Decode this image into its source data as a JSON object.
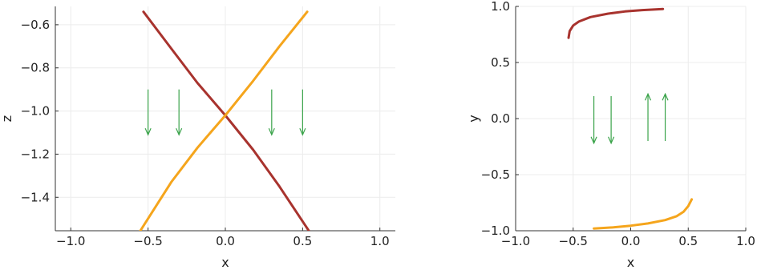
{
  "chart_data": [
    {
      "type": "line",
      "xlabel": "x",
      "ylabel": "z",
      "xlim": [
        -1.1,
        1.1
      ],
      "ylim": [
        -1.555,
        -0.515
      ],
      "xticks": [
        -1.0,
        -0.5,
        0.0,
        0.5,
        1.0
      ],
      "xtick_labels": [
        "−1.0",
        "−0.5",
        "0.0",
        "0.5",
        "1.0"
      ],
      "yticks": [
        -0.6,
        -0.8,
        -1.0,
        -1.2,
        -1.4
      ],
      "ytick_labels": [
        "−0.6",
        "−0.8",
        "−1.0",
        "−1.2",
        "−1.4"
      ],
      "grid": true,
      "legend": "none",
      "series": [
        {
          "color": "#a8332e",
          "points": [
            [
              -0.53,
              -0.54
            ],
            [
              -0.35,
              -0.71
            ],
            [
              -0.18,
              -0.87
            ],
            [
              0.0,
              -1.02
            ],
            [
              0.18,
              -1.18
            ],
            [
              0.35,
              -1.35
            ],
            [
              0.54,
              -1.555
            ]
          ]
        },
        {
          "color": "#f5a51c",
          "points": [
            [
              -0.55,
              -1.555
            ],
            [
              -0.35,
              -1.33
            ],
            [
              -0.18,
              -1.17
            ],
            [
              0.0,
              -1.02
            ],
            [
              0.18,
              -0.86
            ],
            [
              0.35,
              -0.7
            ],
            [
              0.53,
              -0.54
            ]
          ]
        }
      ],
      "arrows": {
        "color": "#3aa34a",
        "items": [
          {
            "x": -0.5,
            "y_from": -0.9,
            "y_to": -1.11
          },
          {
            "x": -0.3,
            "y_from": -0.9,
            "y_to": -1.11
          },
          {
            "x": 0.3,
            "y_from": -0.9,
            "y_to": -1.11
          },
          {
            "x": 0.5,
            "y_from": -0.9,
            "y_to": -1.11
          }
        ]
      }
    },
    {
      "type": "line",
      "xlabel": "x",
      "ylabel": "y",
      "xlim": [
        -1.0,
        1.0
      ],
      "ylim": [
        -1.0,
        1.0
      ],
      "xticks": [
        -1.0,
        -0.5,
        0.0,
        0.5,
        1.0
      ],
      "xtick_labels": [
        "−1.0",
        "−0.5",
        "0.0",
        "0.5",
        "1.0"
      ],
      "yticks": [
        1.0,
        0.5,
        0.0,
        -0.5,
        -1.0
      ],
      "ytick_labels": [
        "1.0",
        "0.5",
        "0.0",
        "−0.5",
        "−1.0"
      ],
      "grid": true,
      "legend": "none",
      "series": [
        {
          "color": "#a8332e",
          "points": [
            [
              -0.54,
              0.72
            ],
            [
              -0.53,
              0.78
            ],
            [
              -0.5,
              0.83
            ],
            [
              -0.45,
              0.865
            ],
            [
              -0.35,
              0.905
            ],
            [
              -0.2,
              0.935
            ],
            [
              -0.05,
              0.955
            ],
            [
              0.1,
              0.967
            ],
            [
              0.28,
              0.977
            ]
          ]
        },
        {
          "color": "#f5a51c",
          "points": [
            [
              -0.32,
              -0.98
            ],
            [
              -0.15,
              -0.97
            ],
            [
              0.0,
              -0.955
            ],
            [
              0.15,
              -0.935
            ],
            [
              0.3,
              -0.905
            ],
            [
              0.4,
              -0.87
            ],
            [
              0.46,
              -0.83
            ],
            [
              0.5,
              -0.78
            ],
            [
              0.53,
              -0.72
            ]
          ]
        }
      ],
      "arrows": {
        "color": "#3aa34a",
        "items": [
          {
            "x": -0.32,
            "y_from": 0.2,
            "y_to": -0.22
          },
          {
            "x": -0.17,
            "y_from": 0.2,
            "y_to": -0.22
          },
          {
            "x": 0.15,
            "y_from": -0.2,
            "y_to": 0.22
          },
          {
            "x": 0.3,
            "y_from": -0.2,
            "y_to": 0.22
          }
        ]
      }
    }
  ]
}
